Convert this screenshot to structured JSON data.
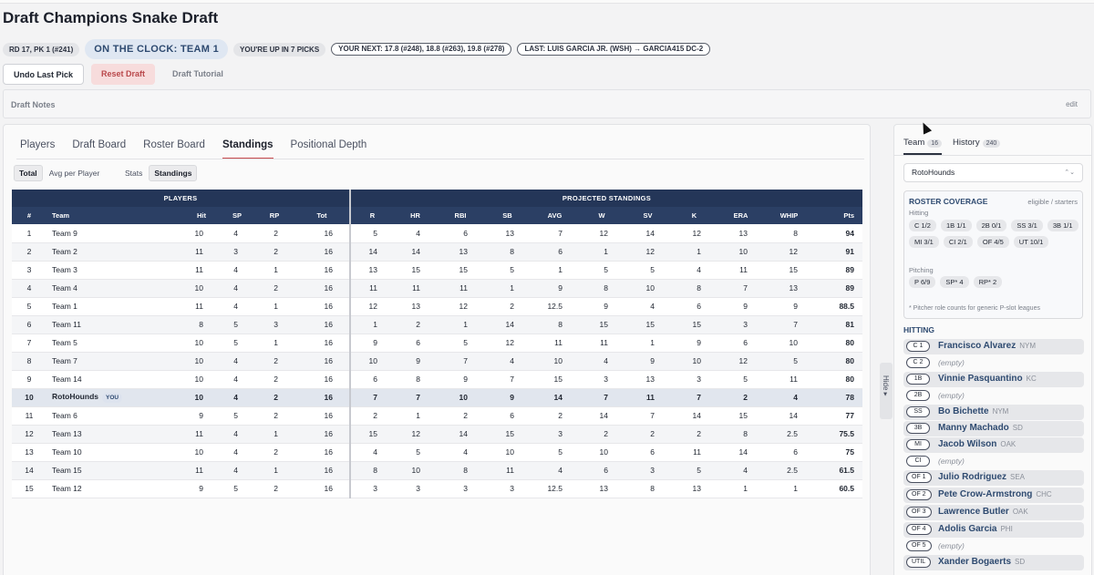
{
  "header": {
    "title": "Draft Champions Snake Draft"
  },
  "status": {
    "pick": "RD 17, PK 1 (#241)",
    "clock": "ON THE CLOCK: TEAM 1",
    "upin": "YOU'RE UP IN 7 PICKS",
    "next": "YOUR NEXT: 17.8 (#248), 18.8 (#263), 19.8 (#278)",
    "last": "LAST: LUIS GARCIA JR. (WSH) → GARCIA415 DC-2"
  },
  "actions": {
    "undo": "Undo Last Pick",
    "reset": "Reset Draft",
    "tutorial": "Draft Tutorial"
  },
  "notes": {
    "label": "Draft Notes",
    "edit": "edit"
  },
  "tabs": [
    "Players",
    "Draft Board",
    "Roster Board",
    "Standings",
    "Positional Depth"
  ],
  "controls": {
    "total": "Total",
    "avg": "Avg per Player",
    "stats_label": "Stats",
    "standings": "Standings"
  },
  "table": {
    "group_players": "PLAYERS",
    "group_standings": "PROJECTED STANDINGS",
    "headers": [
      "#",
      "Team",
      "Hit",
      "SP",
      "RP",
      "Tot",
      "R",
      "HR",
      "RBI",
      "SB",
      "AVG",
      "W",
      "SV",
      "K",
      "ERA",
      "WHIP",
      "Pts"
    ],
    "you_badge": "YOU",
    "rows": [
      [
        "1",
        "Team 9",
        "10",
        "4",
        "2",
        "16",
        "5",
        "4",
        "6",
        "13",
        "7",
        "12",
        "14",
        "12",
        "13",
        "8",
        "94"
      ],
      [
        "2",
        "Team 2",
        "11",
        "3",
        "2",
        "16",
        "14",
        "14",
        "13",
        "8",
        "6",
        "1",
        "12",
        "1",
        "10",
        "12",
        "91"
      ],
      [
        "3",
        "Team 3",
        "11",
        "4",
        "1",
        "16",
        "13",
        "15",
        "15",
        "5",
        "1",
        "5",
        "5",
        "4",
        "11",
        "15",
        "89"
      ],
      [
        "4",
        "Team 4",
        "10",
        "4",
        "2",
        "16",
        "11",
        "11",
        "11",
        "1",
        "9",
        "8",
        "10",
        "8",
        "7",
        "13",
        "89"
      ],
      [
        "5",
        "Team 1",
        "11",
        "4",
        "1",
        "16",
        "12",
        "13",
        "12",
        "2",
        "12.5",
        "9",
        "4",
        "6",
        "9",
        "9",
        "88.5"
      ],
      [
        "6",
        "Team 11",
        "8",
        "5",
        "3",
        "16",
        "1",
        "2",
        "1",
        "14",
        "8",
        "15",
        "15",
        "15",
        "3",
        "7",
        "81"
      ],
      [
        "7",
        "Team 5",
        "10",
        "5",
        "1",
        "16",
        "9",
        "6",
        "5",
        "12",
        "11",
        "11",
        "1",
        "9",
        "6",
        "10",
        "80"
      ],
      [
        "8",
        "Team 7",
        "10",
        "4",
        "2",
        "16",
        "10",
        "9",
        "7",
        "4",
        "10",
        "4",
        "9",
        "10",
        "12",
        "5",
        "80"
      ],
      [
        "9",
        "Team 14",
        "10",
        "4",
        "2",
        "16",
        "6",
        "8",
        "9",
        "7",
        "15",
        "3",
        "13",
        "3",
        "5",
        "11",
        "80"
      ],
      [
        "10",
        "RotoHounds",
        "10",
        "4",
        "2",
        "16",
        "7",
        "7",
        "10",
        "9",
        "14",
        "7",
        "11",
        "7",
        "2",
        "4",
        "78"
      ],
      [
        "11",
        "Team 6",
        "9",
        "5",
        "2",
        "16",
        "2",
        "1",
        "2",
        "6",
        "2",
        "14",
        "7",
        "14",
        "15",
        "14",
        "77"
      ],
      [
        "12",
        "Team 13",
        "11",
        "4",
        "1",
        "16",
        "15",
        "12",
        "14",
        "15",
        "3",
        "2",
        "2",
        "2",
        "8",
        "2.5",
        "75.5"
      ],
      [
        "13",
        "Team 10",
        "10",
        "4",
        "2",
        "16",
        "4",
        "5",
        "4",
        "10",
        "5",
        "10",
        "6",
        "11",
        "14",
        "6",
        "75"
      ],
      [
        "14",
        "Team 15",
        "11",
        "4",
        "1",
        "16",
        "8",
        "10",
        "8",
        "11",
        "4",
        "6",
        "3",
        "5",
        "4",
        "2.5",
        "61.5"
      ],
      [
        "15",
        "Team 12",
        "9",
        "5",
        "2",
        "16",
        "3",
        "3",
        "3",
        "3",
        "12.5",
        "13",
        "8",
        "13",
        "1",
        "1",
        "60.5"
      ]
    ]
  },
  "hide_label": "Hide ▸",
  "sidebar": {
    "tab_team": "Team",
    "team_count": "16",
    "tab_history": "History",
    "history_count": "240",
    "team_select": "RotoHounds",
    "coverage_title": "ROSTER COVERAGE",
    "coverage_right": "eligible / starters",
    "hitting_label": "Hitting",
    "pitching_label": "Pitching",
    "hit_chips": [
      "C 1/2",
      "1B 1/1",
      "2B 0/1",
      "SS 3/1",
      "3B 1/1",
      "MI 3/1",
      "CI 2/1",
      "OF 4/5",
      "UT 10/1"
    ],
    "pitch_chips": [
      "P 6/9",
      "SP* 4",
      "RP* 2"
    ],
    "coverage_note": "* Pitcher role counts for generic P-slot leagues",
    "hitting_header": "HITTING",
    "empty_text": "(empty)",
    "slots": [
      {
        "pos": "C 1",
        "name": "Francisco Alvarez",
        "team": "NYM"
      },
      {
        "pos": "C 2",
        "name": "",
        "team": ""
      },
      {
        "pos": "1B",
        "name": "Vinnie Pasquantino",
        "team": "KC"
      },
      {
        "pos": "2B",
        "name": "",
        "team": ""
      },
      {
        "pos": "SS",
        "name": "Bo Bichette",
        "team": "NYM"
      },
      {
        "pos": "3B",
        "name": "Manny Machado",
        "team": "SD"
      },
      {
        "pos": "MI",
        "name": "Jacob Wilson",
        "team": "OAK"
      },
      {
        "pos": "CI",
        "name": "",
        "team": ""
      },
      {
        "pos": "OF 1",
        "name": "Julio Rodriguez",
        "team": "SEA"
      },
      {
        "pos": "OF 2",
        "name": "Pete Crow-Armstrong",
        "team": "CHC"
      },
      {
        "pos": "OF 3",
        "name": "Lawrence Butler",
        "team": "OAK"
      },
      {
        "pos": "OF 4",
        "name": "Adolis Garcia",
        "team": "PHI"
      },
      {
        "pos": "OF 5",
        "name": "",
        "team": ""
      },
      {
        "pos": "UTIL",
        "name": "Xander Bogaerts",
        "team": "SD"
      }
    ]
  }
}
